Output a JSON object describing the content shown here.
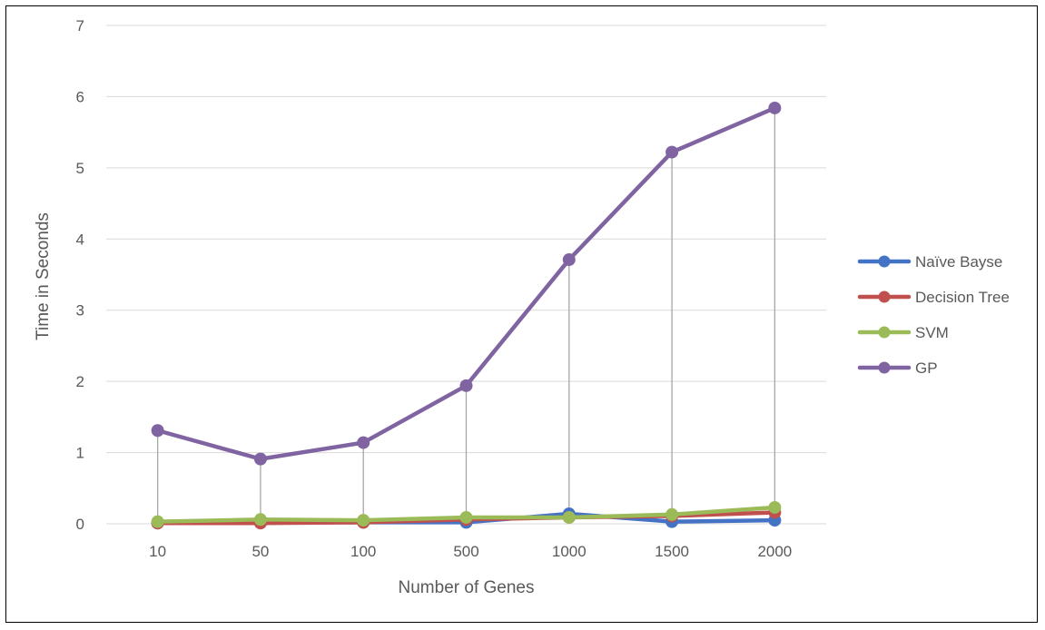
{
  "chart_data": {
    "type": "line",
    "title": "",
    "xlabel": "Number of Genes",
    "ylabel": "Time in Seconds",
    "categories": [
      "10",
      "50",
      "100",
      "500",
      "1000",
      "1500",
      "2000"
    ],
    "ylim": [
      0,
      7
    ],
    "yticks": [
      "0",
      "1",
      "2",
      "3",
      "4",
      "5",
      "6",
      "7"
    ],
    "grid": true,
    "drop_lines": true,
    "legend_position": "right",
    "series": [
      {
        "name": "Naïve Bayse",
        "color": "#4472C4",
        "values": [
          0.01,
          0.02,
          0.02,
          0.02,
          0.14,
          0.03,
          0.05
        ]
      },
      {
        "name": "Decision Tree",
        "color": "#C0504D",
        "values": [
          0.01,
          0.01,
          0.02,
          0.06,
          0.09,
          0.11,
          0.16
        ]
      },
      {
        "name": "SVM",
        "color": "#9BBB59",
        "values": [
          0.03,
          0.06,
          0.05,
          0.09,
          0.09,
          0.13,
          0.23
        ]
      },
      {
        "name": "GP",
        "color": "#8064A2",
        "values": [
          1.31,
          0.91,
          1.14,
          1.94,
          3.71,
          5.22,
          5.84
        ]
      }
    ]
  }
}
